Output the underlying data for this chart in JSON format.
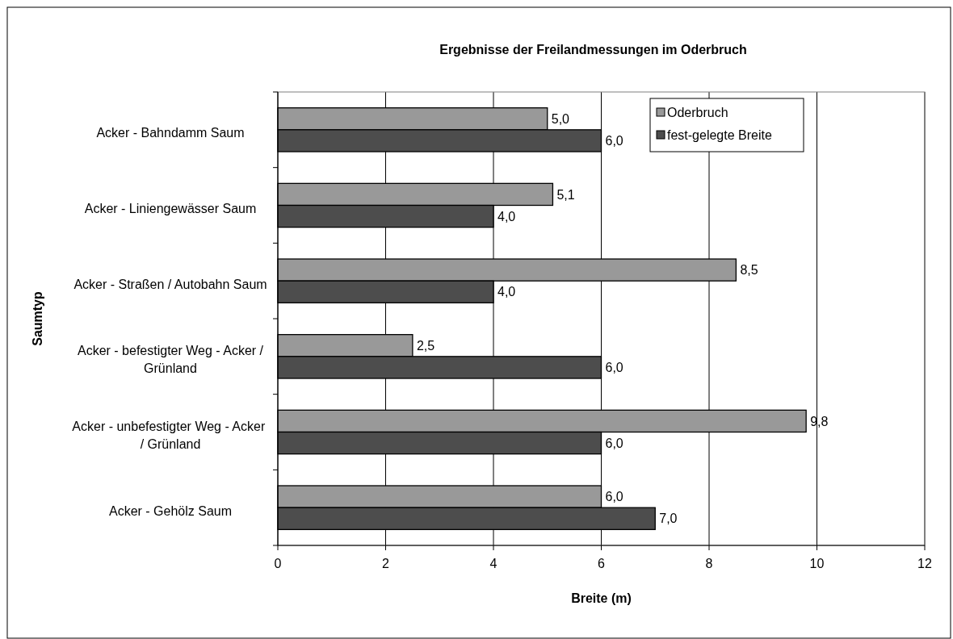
{
  "chart_data": {
    "type": "bar",
    "orientation": "horizontal",
    "title": "Ergebnisse der Freilandmessungen im Oderbruch",
    "xlabel": "Breite (m)",
    "ylabel": "Saumtyp",
    "categories": [
      "Acker - Bahndamm Saum",
      "Acker - Liniengewässer Saum",
      "Acker - Straßen / Autobahn Saum",
      "Acker - befestigter Weg - Acker  / Grünland",
      "Acker - unbefestigter Weg - Acker  / Grünland",
      "Acker - Gehölz Saum"
    ],
    "series": [
      {
        "name": "Oderbruch",
        "color": "#999999",
        "values": [
          5.0,
          5.1,
          8.5,
          2.5,
          9.8,
          6.0
        ],
        "value_labels": [
          "5,0",
          "5,1",
          "8,5",
          "2,5",
          "9,8",
          "6,0"
        ]
      },
      {
        "name": "fest-gelegte Breite",
        "color": "#4d4d4d",
        "values": [
          6.0,
          4.0,
          4.0,
          6.0,
          6.0,
          7.0
        ],
        "value_labels": [
          "6,0",
          "4,0",
          "4,0",
          "6,0",
          "6,0",
          "7,0"
        ]
      }
    ],
    "xlim": [
      0,
      12
    ],
    "xticks": [
      0,
      2,
      4,
      6,
      8,
      10,
      12
    ],
    "grid": "x",
    "legend": "top right"
  }
}
